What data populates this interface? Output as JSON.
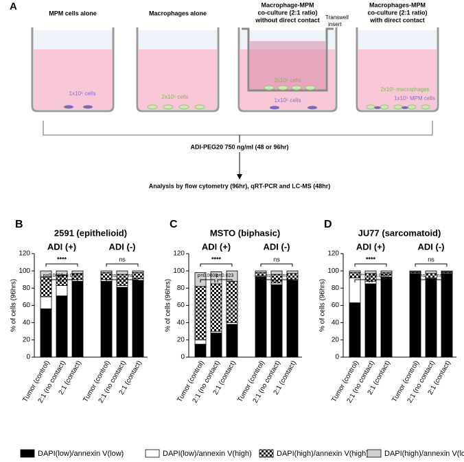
{
  "schematic": {
    "panel": "A",
    "wells": [
      {
        "title": [
          "MPM cells alone"
        ],
        "labels": [
          "1x10⁵ cells"
        ]
      },
      {
        "title": [
          "Macrophages alone"
        ],
        "labels": [
          "2x10⁵ cells"
        ]
      },
      {
        "title": [
          "Macrophage-MPM",
          "co-culture (2:1 ratio)",
          "without direct contact"
        ],
        "labels": [
          "2x10⁵ cells",
          "1x10⁵ cells"
        ]
      },
      {
        "title": [
          "Macrophages-MPM",
          "co-culture (2:1 ratio)",
          "with direct contact"
        ],
        "labels": [
          "2x10⁵ macrophages",
          "1x10⁵ MPM cells"
        ]
      }
    ],
    "insert_label": [
      "Transwell",
      "insert"
    ],
    "treatment": "ADI-PEG20 750 ng/ml (48 or 96hr)",
    "analysis": "Analysis by flow cytometry (96hr), qRT-PCR  and LC-MS (48hr)"
  },
  "chart_data": [
    {
      "type": "stacked_bar",
      "panel": "B",
      "title": "2591 (epithelioid)",
      "y_label": "% of cells (96hrs)",
      "groups": [
        "ADI (+)",
        "ADI (-)"
      ],
      "categories": [
        "Tumor (control)",
        "2:1 (no contact)",
        "2:1 (contact)",
        "Tumor (control)",
        "2:1 (no contact)",
        "2:1 (contact)"
      ],
      "annotations": [
        "****",
        "p=0.0062",
        "p=0.0002",
        "ns",
        "ns",
        "ns"
      ],
      "ylim": [
        0,
        120
      ],
      "yticks": [
        0,
        20,
        40,
        60,
        80,
        100,
        120
      ],
      "series": [
        {
          "name": "DAPI(low)/annexin V(low)",
          "color": "#000000",
          "values": [
            56,
            71,
            88,
            88,
            81,
            89
          ]
        },
        {
          "name": "DAPI(low)/annexin V(high)",
          "color": "#ffffff",
          "values": [
            14,
            12,
            2,
            2,
            2,
            2
          ]
        },
        {
          "name": "DAPI(high)/annexin V(high)",
          "color": "#000000",
          "pattern": "checker",
          "values": [
            23,
            12,
            7,
            8,
            13,
            7
          ]
        },
        {
          "name": "DAPI(high)/annexin V(low)",
          "color": "#d0d0d0",
          "values": [
            7,
            5,
            3,
            2,
            4,
            2
          ]
        }
      ]
    },
    {
      "type": "stacked_bar",
      "panel": "C",
      "title": "MSTO (biphasic)",
      "y_label": "% of cells (96hrs)",
      "groups": [
        "ADI (+)",
        "ADI (-)"
      ],
      "categories": [
        "Tumor (control)",
        "2:1 (no contact)",
        "2:1 (contact)",
        "Tumor (control)",
        "2:1 (no contact)",
        "2:1 (contact)"
      ],
      "annotations": [
        "****",
        "p=0.0008",
        "p=0.023",
        "ns",
        "ns",
        "ns"
      ],
      "ylim": [
        0,
        120
      ],
      "yticks": [
        0,
        20,
        40,
        60,
        80,
        100,
        120
      ],
      "series": [
        {
          "values": [
            15,
            28,
            38,
            93,
            84,
            89
          ]
        },
        {
          "values": [
            5,
            2,
            2,
            1,
            2,
            1
          ]
        },
        {
          "values": [
            62,
            55,
            48,
            4,
            10,
            7
          ]
        },
        {
          "values": [
            16,
            14,
            12,
            2,
            4,
            3
          ]
        }
      ]
    },
    {
      "type": "stacked_bar",
      "panel": "D",
      "title": "JU77 (sarcomatoid)",
      "y_label": "% of cells (96hrs)",
      "groups": [
        "ADI (+)",
        "ADI (-)"
      ],
      "categories": [
        "Tumor (control)",
        "2:1 (no contact)",
        "2:1 (contact)",
        "Tumor (control)",
        "2:1 (no contact)",
        "2:1 (contact)"
      ],
      "annotations": [
        "****",
        "****",
        "p=0.0005",
        "ns",
        "ns",
        "ns"
      ],
      "ylim": [
        0,
        120
      ],
      "yticks": [
        0,
        20,
        40,
        60,
        80,
        100,
        120
      ],
      "series": [
        {
          "values": [
            63,
            85,
            93,
            97,
            91,
            97
          ]
        },
        {
          "values": [
            29,
            3,
            2,
            1,
            1,
            1
          ]
        },
        {
          "values": [
            6,
            9,
            3,
            1,
            5,
            1
          ]
        },
        {
          "values": [
            2,
            3,
            2,
            1,
            3,
            1
          ]
        }
      ]
    }
  ]
}
